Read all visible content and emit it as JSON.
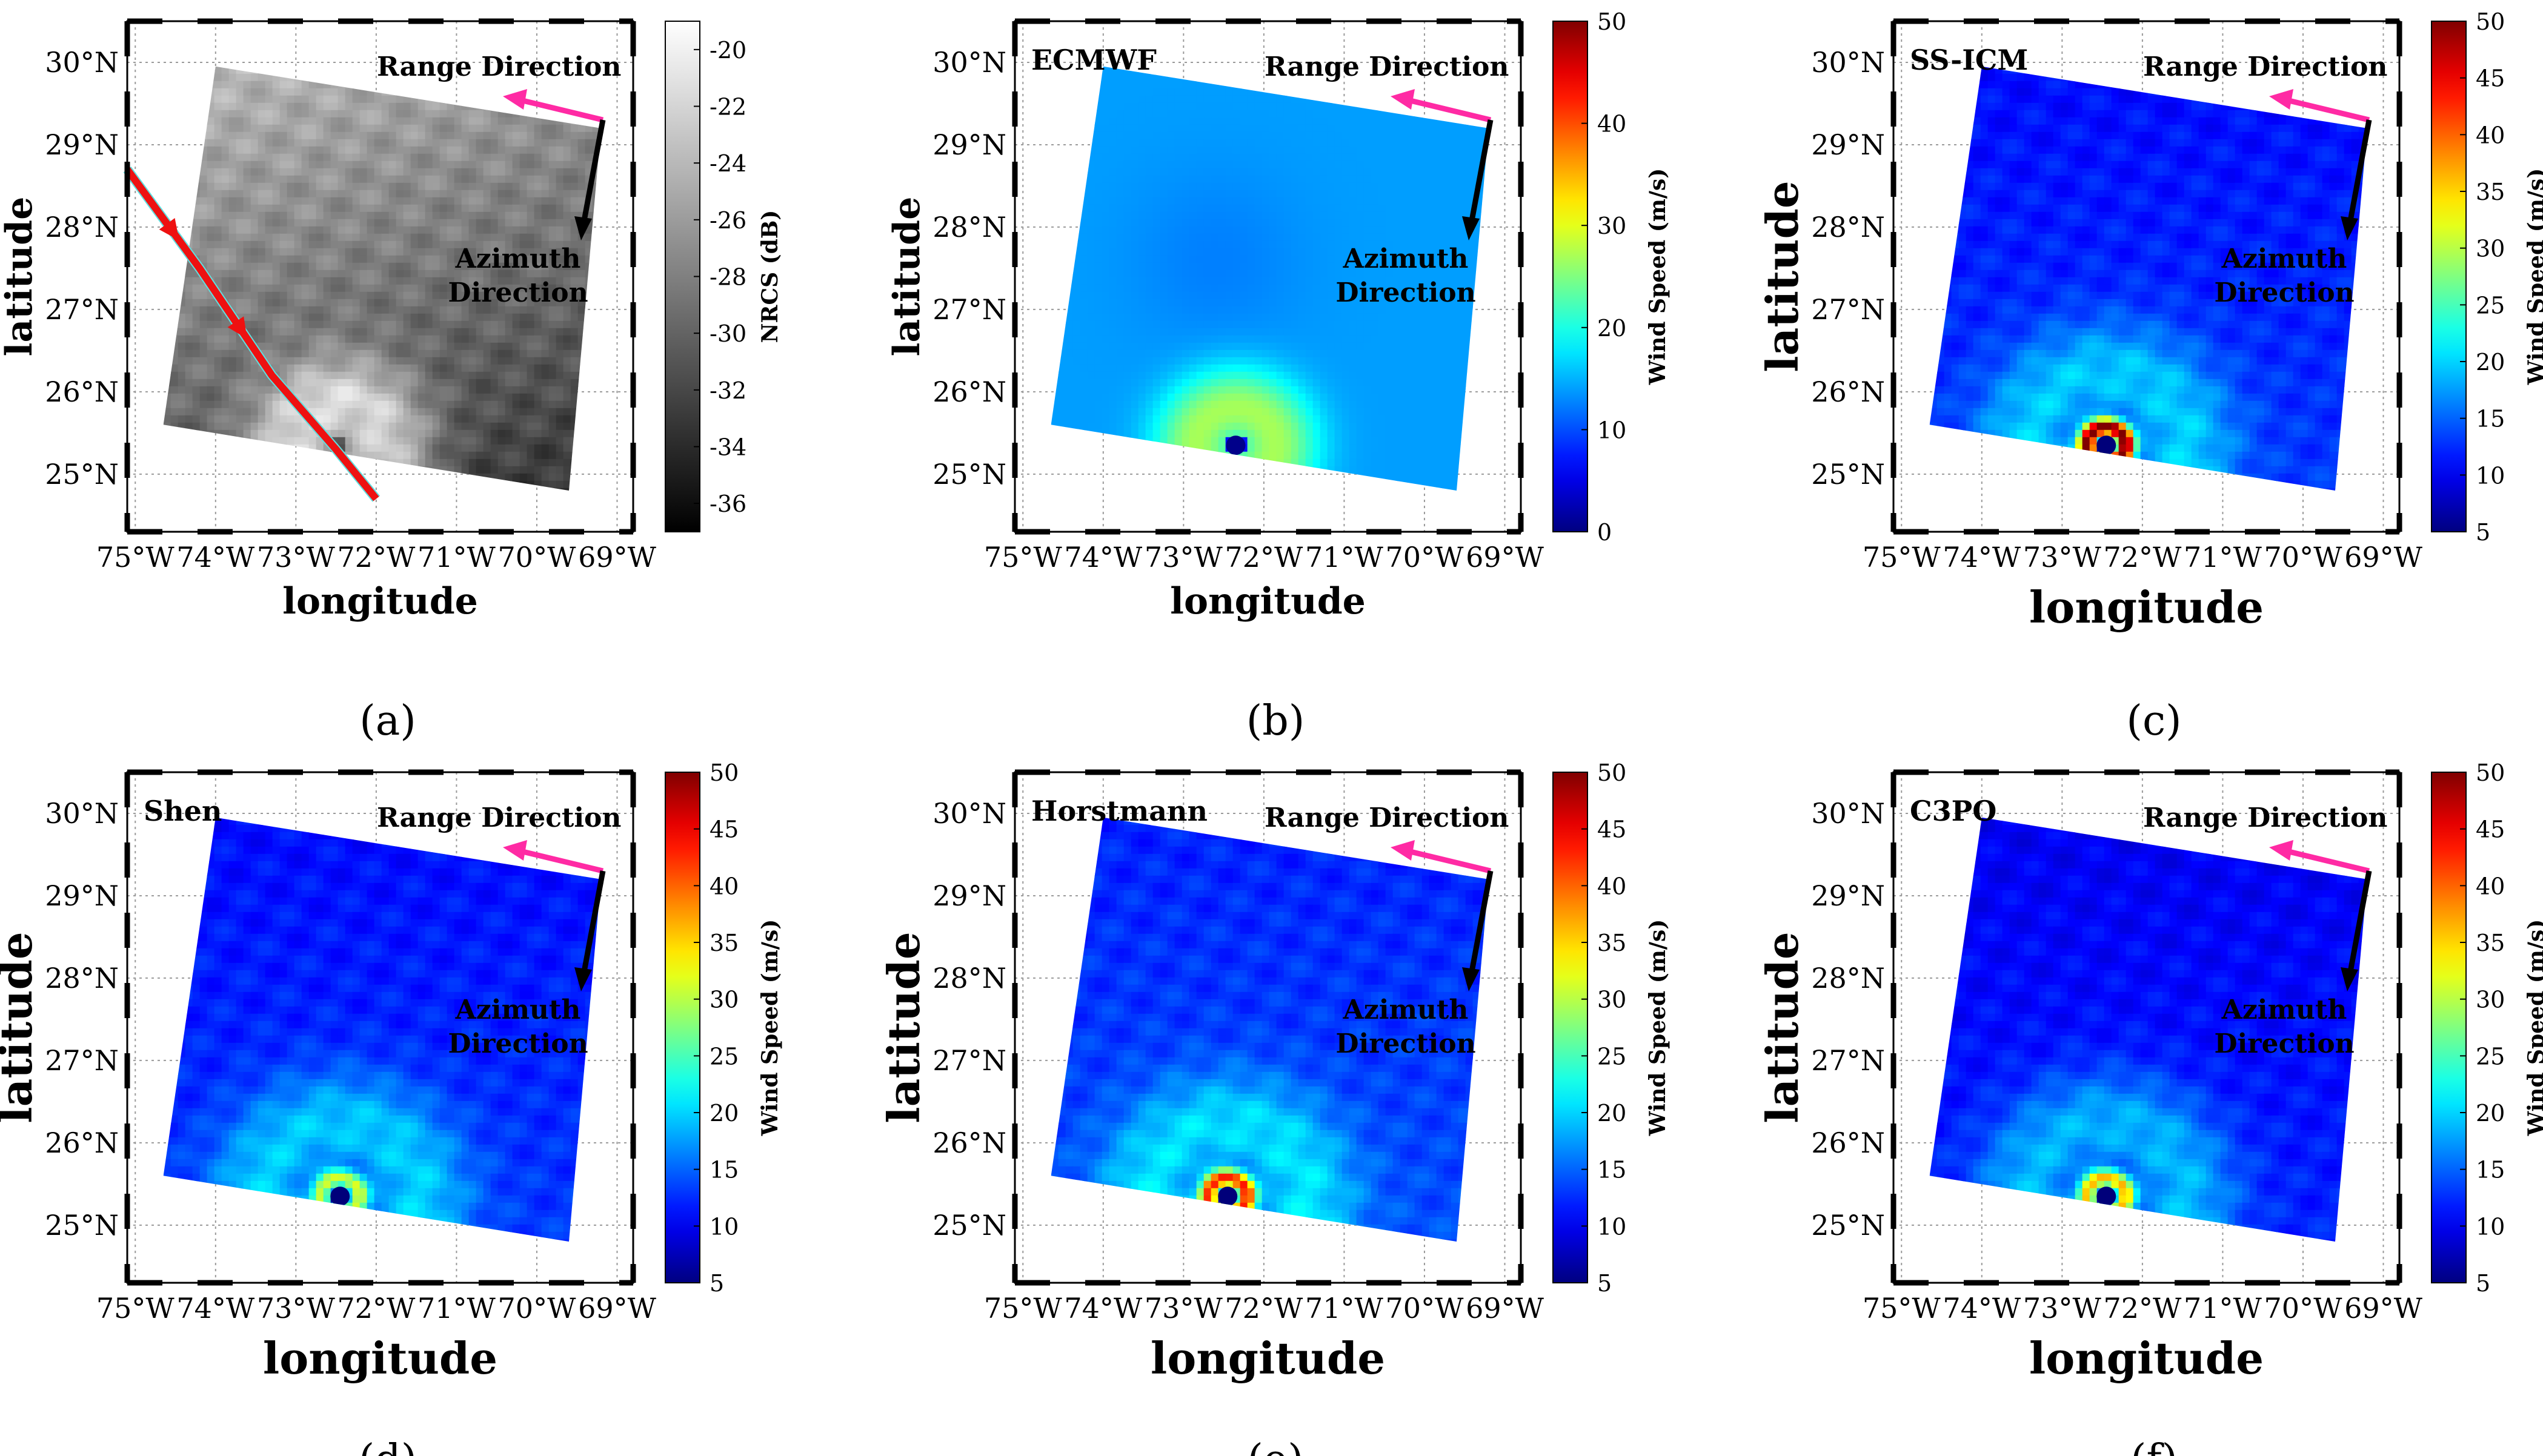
{
  "chart_data": [
    {
      "id": "a",
      "type": "heatmap",
      "title": "",
      "panel_label": "(a)",
      "xlabel": "longitude",
      "ylabel": "latitude",
      "x_ticks": [
        "75°W",
        "74°W",
        "73°W",
        "72°W",
        "71°W",
        "70°W",
        "69°W"
      ],
      "y_ticks": [
        "30°N",
        "29°N",
        "28°N",
        "27°N",
        "26°N",
        "25°N"
      ],
      "xlim": [
        -75.1,
        -68.8
      ],
      "ylim": [
        24.3,
        30.5
      ],
      "colorbar": {
        "label": "NRCS (dB)",
        "colormap": "gray",
        "range": [
          -37,
          -19
        ],
        "ticks": [
          -20,
          -22,
          -24,
          -26,
          -28,
          -30,
          -32,
          -34,
          -36
        ]
      },
      "annotations": [
        "Range Direction",
        "Azimuth Direction"
      ],
      "track": {
        "description": "storm track overlay",
        "points": [
          [
            -75.1,
            28.7
          ],
          [
            -74.2,
            27.5
          ],
          [
            -73.3,
            26.2
          ],
          [
            -72.5,
            25.3
          ],
          [
            -72.0,
            24.7
          ]
        ]
      },
      "field": {
        "kind": "nrcs",
        "eye": [
          -72.45,
          25.35
        ]
      }
    },
    {
      "id": "b",
      "type": "heatmap",
      "title": "ECMWF",
      "panel_label": "(b)",
      "xlabel": "longitude",
      "ylabel": "latitude",
      "x_ticks": [
        "75°W",
        "74°W",
        "73°W",
        "72°W",
        "71°W",
        "70°W",
        "69°W"
      ],
      "y_ticks": [
        "30°N",
        "29°N",
        "28°N",
        "27°N",
        "26°N",
        "25°N"
      ],
      "xlim": [
        -75.1,
        -68.8
      ],
      "ylim": [
        24.3,
        30.5
      ],
      "colorbar": {
        "label": "Wind Speed (m/s)",
        "colormap": "jet",
        "range": [
          0,
          50
        ],
        "ticks": [
          50,
          40,
          30,
          20,
          10,
          0
        ]
      },
      "annotations": [
        "Range Direction",
        "Azimuth Direction"
      ],
      "field": {
        "kind": "ecmwf",
        "eye": [
          -72.35,
          25.35
        ],
        "background_speed": 14,
        "max_speed": 27
      }
    },
    {
      "id": "c",
      "type": "heatmap",
      "title": "SS-ICM",
      "panel_label": "(c)",
      "xlabel": "longitude",
      "ylabel": "latitude",
      "x_ticks": [
        "75°W",
        "74°W",
        "73°W",
        "72°W",
        "71°W",
        "70°W",
        "69°W"
      ],
      "y_ticks": [
        "30°N",
        "29°N",
        "28°N",
        "27°N",
        "26°N",
        "25°N"
      ],
      "xlim": [
        -75.1,
        -68.8
      ],
      "ylim": [
        24.3,
        30.5
      ],
      "colorbar": {
        "label": "Wind Speed (m/s)",
        "colormap": "jet",
        "range": [
          5,
          50
        ],
        "ticks": [
          50,
          45,
          40,
          35,
          30,
          25,
          20,
          15,
          10,
          5
        ]
      },
      "annotations": [
        "Range Direction",
        "Azimuth Direction"
      ],
      "field": {
        "kind": "sar",
        "eye": [
          -72.45,
          25.35
        ],
        "background_speed": 12,
        "max_speed": 48
      }
    },
    {
      "id": "d",
      "type": "heatmap",
      "title": "Shen",
      "panel_label": "(d)",
      "xlabel": "longitude",
      "ylabel": "latitude",
      "x_ticks": [
        "75°W",
        "74°W",
        "73°W",
        "72°W",
        "71°W",
        "70°W",
        "69°W"
      ],
      "y_ticks": [
        "30°N",
        "29°N",
        "28°N",
        "27°N",
        "26°N",
        "25°N"
      ],
      "xlim": [
        -75.1,
        -68.8
      ],
      "ylim": [
        24.3,
        30.5
      ],
      "colorbar": {
        "label": "Wind Speed (m/s)",
        "colormap": "jet",
        "range": [
          5,
          50
        ],
        "ticks": [
          50,
          45,
          40,
          35,
          30,
          25,
          20,
          15,
          10,
          5
        ]
      },
      "annotations": [
        "Range Direction",
        "Azimuth Direction"
      ],
      "field": {
        "kind": "sar",
        "eye": [
          -72.45,
          25.35
        ],
        "background_speed": 12,
        "max_speed": 28
      }
    },
    {
      "id": "e",
      "type": "heatmap",
      "title": "Horstmann",
      "panel_label": "(e)",
      "xlabel": "longitude",
      "ylabel": "latitude",
      "x_ticks": [
        "75°W",
        "74°W",
        "73°W",
        "72°W",
        "71°W",
        "70°W",
        "69°W"
      ],
      "y_ticks": [
        "30°N",
        "29°N",
        "28°N",
        "27°N",
        "26°N",
        "25°N"
      ],
      "xlim": [
        -75.1,
        -68.8
      ],
      "ylim": [
        24.3,
        30.5
      ],
      "colorbar": {
        "label": "Wind Speed (m/s)",
        "colormap": "jet",
        "range": [
          5,
          50
        ],
        "ticks": [
          50,
          45,
          40,
          35,
          30,
          25,
          20,
          15,
          10,
          5
        ]
      },
      "annotations": [
        "Range Direction",
        "Azimuth Direction"
      ],
      "field": {
        "kind": "sar",
        "eye": [
          -72.45,
          25.35
        ],
        "background_speed": 13,
        "max_speed": 40
      }
    },
    {
      "id": "f",
      "type": "heatmap",
      "title": "C3PO",
      "panel_label": "(f)",
      "xlabel": "longitude",
      "ylabel": "latitude",
      "x_ticks": [
        "75°W",
        "74°W",
        "73°W",
        "72°W",
        "71°W",
        "70°W",
        "69°W"
      ],
      "y_ticks": [
        "30°N",
        "29°N",
        "28°N",
        "27°N",
        "26°N",
        "25°N"
      ],
      "xlim": [
        -75.1,
        -68.8
      ],
      "ylim": [
        24.3,
        30.5
      ],
      "colorbar": {
        "label": "Wind Speed (m/s)",
        "colormap": "jet",
        "range": [
          5,
          50
        ],
        "ticks": [
          50,
          45,
          40,
          35,
          30,
          25,
          20,
          15,
          10,
          5
        ]
      },
      "annotations": [
        "Range Direction",
        "Azimuth Direction"
      ],
      "field": {
        "kind": "sar",
        "eye": [
          -72.45,
          25.35
        ],
        "background_speed": 11,
        "max_speed": 33
      }
    }
  ]
}
